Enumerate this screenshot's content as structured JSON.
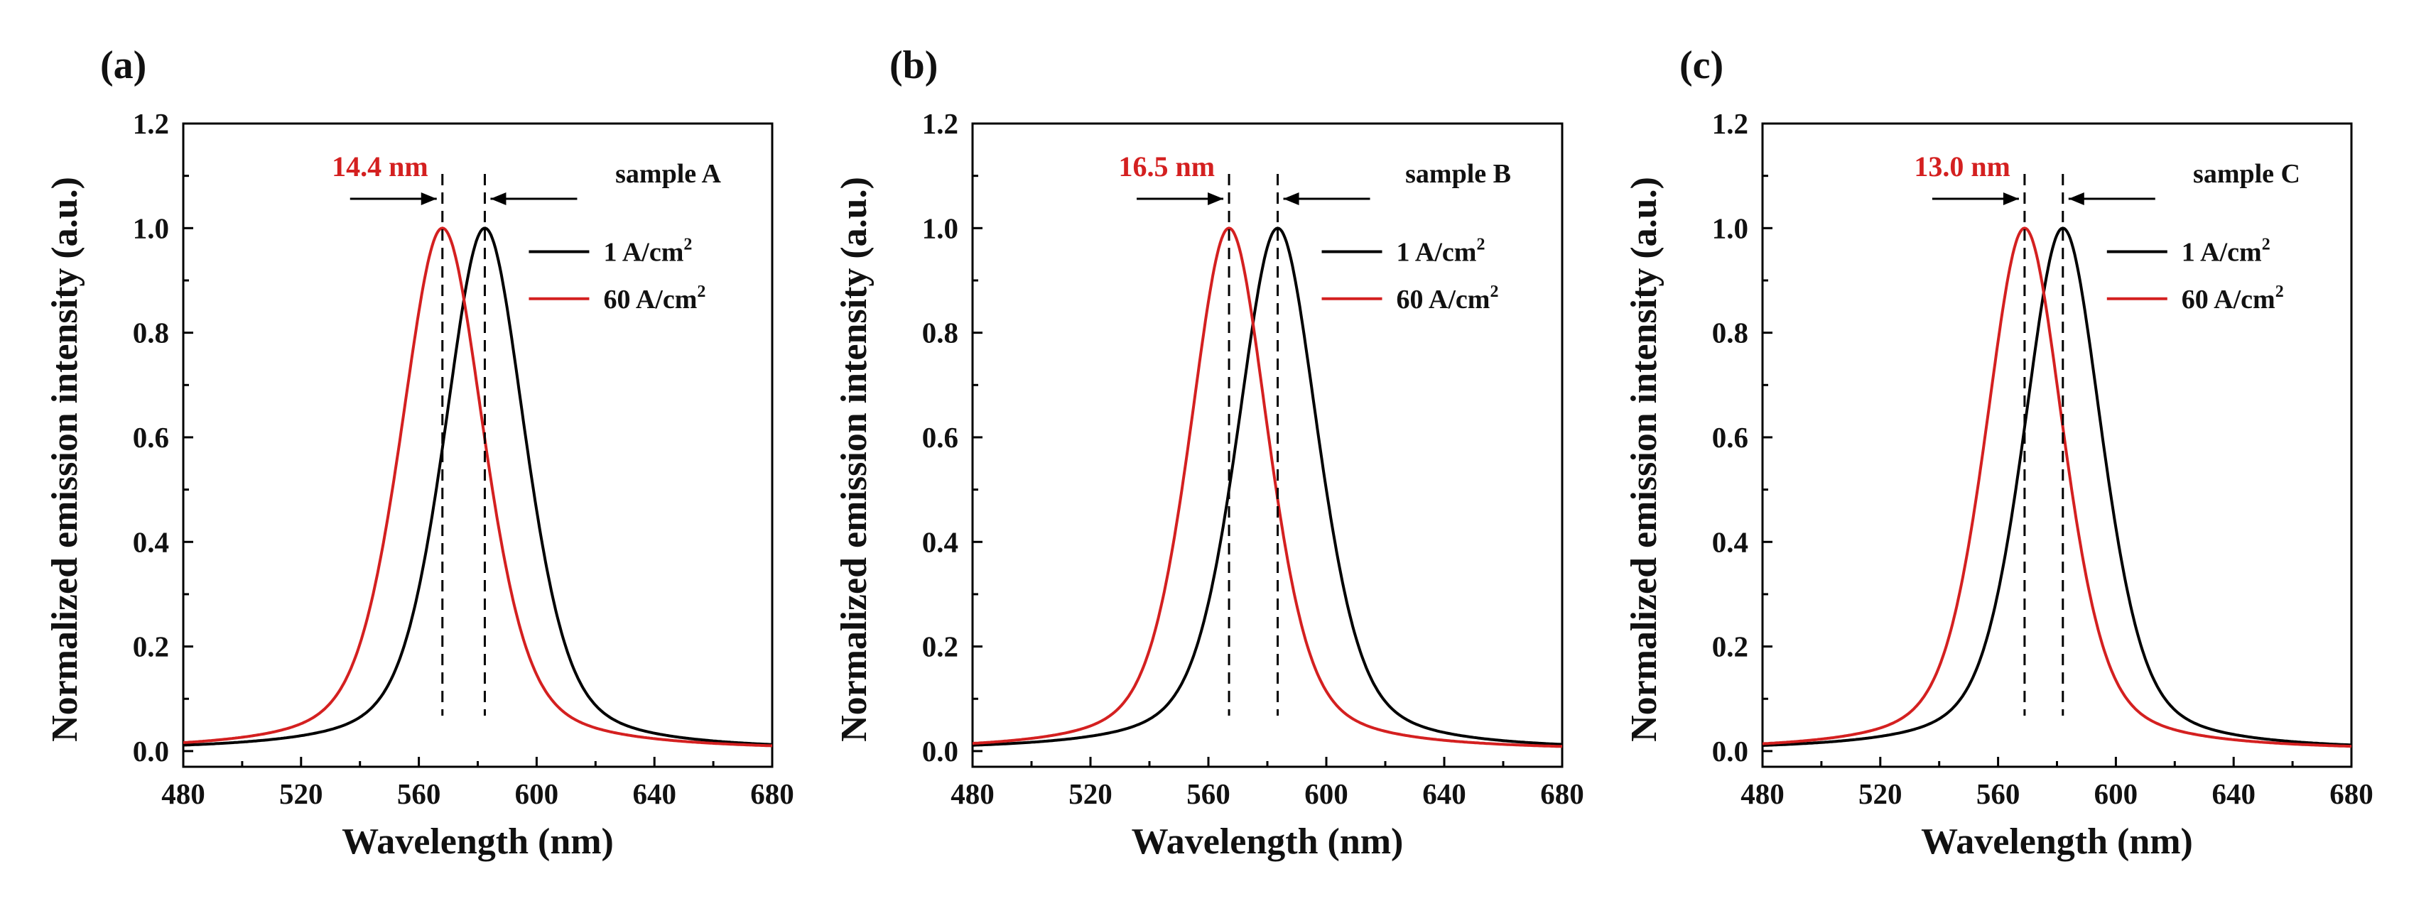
{
  "chart_data": [
    {
      "type": "line",
      "panel_label": "(a)",
      "sample_label": "sample A",
      "xlabel": "Wavelength (nm)",
      "ylabel": "Normalized emission intensity (a.u.)",
      "xlim": [
        480,
        680
      ],
      "ylim": [
        -0.03,
        1.2
      ],
      "xticks": [
        480,
        520,
        560,
        600,
        640,
        680
      ],
      "yticks": [
        0.0,
        0.2,
        0.4,
        0.6,
        0.8,
        1.0,
        1.2
      ],
      "xtick_labels": [
        "480",
        "520",
        "560",
        "600",
        "640",
        "680"
      ],
      "ytick_labels": [
        "0.0",
        "0.2",
        "0.4",
        "0.6",
        "0.8",
        "1.0",
        "1.2"
      ],
      "shift_label": "14.4 nm",
      "series": [
        {
          "name": "1 A/cm2",
          "legend_main": "1  A/cm",
          "legend_sup": "2",
          "color": "#000000",
          "peak": 582.4,
          "fwhm": 33
        },
        {
          "name": "60 A/cm2",
          "legend_main": "60 A/cm",
          "legend_sup": "2",
          "color": "#d42020",
          "peak": 568.0,
          "fwhm": 34
        }
      ]
    },
    {
      "type": "line",
      "panel_label": "(b)",
      "sample_label": "sample B",
      "xlabel": "Wavelength (nm)",
      "ylabel": "Normalized emission intensity (a.u.)",
      "xlim": [
        480,
        680
      ],
      "ylim": [
        -0.03,
        1.2
      ],
      "xticks": [
        480,
        520,
        560,
        600,
        640,
        680
      ],
      "yticks": [
        0.0,
        0.2,
        0.4,
        0.6,
        0.8,
        1.0,
        1.2
      ],
      "xtick_labels": [
        "480",
        "520",
        "560",
        "600",
        "640",
        "680"
      ],
      "ytick_labels": [
        "0.0",
        "0.2",
        "0.4",
        "0.6",
        "0.8",
        "1.0",
        "1.2"
      ],
      "shift_label": "16.5 nm",
      "series": [
        {
          "name": "1 A/cm2",
          "legend_main": "1  A/cm",
          "legend_sup": "2",
          "color": "#000000",
          "peak": 583.5,
          "fwhm": 33
        },
        {
          "name": "60 A/cm2",
          "legend_main": "60 A/cm",
          "legend_sup": "2",
          "color": "#d42020",
          "peak": 567.0,
          "fwhm": 32
        }
      ]
    },
    {
      "type": "line",
      "panel_label": "(c)",
      "sample_label": "sample C",
      "xlabel": "Wavelength (nm)",
      "ylabel": "Normalized emission intensity (a.u.)",
      "xlim": [
        480,
        680
      ],
      "ylim": [
        -0.03,
        1.2
      ],
      "xticks": [
        480,
        520,
        560,
        600,
        640,
        680
      ],
      "yticks": [
        0.0,
        0.2,
        0.4,
        0.6,
        0.8,
        1.0,
        1.2
      ],
      "xtick_labels": [
        "480",
        "520",
        "560",
        "600",
        "640",
        "680"
      ],
      "ytick_labels": [
        "0.0",
        "0.2",
        "0.4",
        "0.6",
        "0.8",
        "1.0",
        "1.2"
      ],
      "shift_label": "13.0 nm",
      "series": [
        {
          "name": "1 A/cm2",
          "legend_main": "1  A/cm",
          "legend_sup": "2",
          "color": "#000000",
          "peak": 582.0,
          "fwhm": 32
        },
        {
          "name": "60 A/cm2",
          "legend_main": "60 A/cm",
          "legend_sup": "2",
          "color": "#d42020",
          "peak": 569.0,
          "fwhm": 32
        }
      ]
    }
  ]
}
